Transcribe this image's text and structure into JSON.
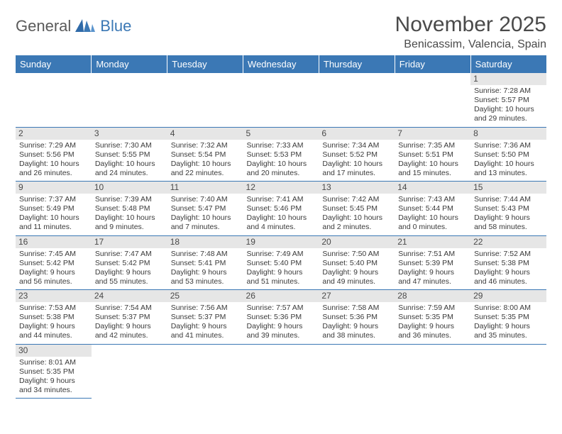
{
  "logo": {
    "text1": "General",
    "text2": "Blue"
  },
  "title": "November 2025",
  "location": "Benicassim, Valencia, Spain",
  "colors": {
    "header_bg": "#3b78b5",
    "header_text": "#ffffff",
    "daynum_bg": "#e6e6e6",
    "text": "#3a3a3a",
    "logo_gray": "#5a5a5a",
    "logo_blue": "#3b78b5",
    "border": "#3b78b5"
  },
  "weekdays": [
    "Sunday",
    "Monday",
    "Tuesday",
    "Wednesday",
    "Thursday",
    "Friday",
    "Saturday"
  ],
  "weeks": [
    [
      null,
      null,
      null,
      null,
      null,
      null,
      {
        "n": "1",
        "sunrise": "7:28 AM",
        "sunset": "5:57 PM",
        "daylight": "10 hours and 29 minutes."
      }
    ],
    [
      {
        "n": "2",
        "sunrise": "7:29 AM",
        "sunset": "5:56 PM",
        "daylight": "10 hours and 26 minutes."
      },
      {
        "n": "3",
        "sunrise": "7:30 AM",
        "sunset": "5:55 PM",
        "daylight": "10 hours and 24 minutes."
      },
      {
        "n": "4",
        "sunrise": "7:32 AM",
        "sunset": "5:54 PM",
        "daylight": "10 hours and 22 minutes."
      },
      {
        "n": "5",
        "sunrise": "7:33 AM",
        "sunset": "5:53 PM",
        "daylight": "10 hours and 20 minutes."
      },
      {
        "n": "6",
        "sunrise": "7:34 AM",
        "sunset": "5:52 PM",
        "daylight": "10 hours and 17 minutes."
      },
      {
        "n": "7",
        "sunrise": "7:35 AM",
        "sunset": "5:51 PM",
        "daylight": "10 hours and 15 minutes."
      },
      {
        "n": "8",
        "sunrise": "7:36 AM",
        "sunset": "5:50 PM",
        "daylight": "10 hours and 13 minutes."
      }
    ],
    [
      {
        "n": "9",
        "sunrise": "7:37 AM",
        "sunset": "5:49 PM",
        "daylight": "10 hours and 11 minutes."
      },
      {
        "n": "10",
        "sunrise": "7:39 AM",
        "sunset": "5:48 PM",
        "daylight": "10 hours and 9 minutes."
      },
      {
        "n": "11",
        "sunrise": "7:40 AM",
        "sunset": "5:47 PM",
        "daylight": "10 hours and 7 minutes."
      },
      {
        "n": "12",
        "sunrise": "7:41 AM",
        "sunset": "5:46 PM",
        "daylight": "10 hours and 4 minutes."
      },
      {
        "n": "13",
        "sunrise": "7:42 AM",
        "sunset": "5:45 PM",
        "daylight": "10 hours and 2 minutes."
      },
      {
        "n": "14",
        "sunrise": "7:43 AM",
        "sunset": "5:44 PM",
        "daylight": "10 hours and 0 minutes."
      },
      {
        "n": "15",
        "sunrise": "7:44 AM",
        "sunset": "5:43 PM",
        "daylight": "9 hours and 58 minutes."
      }
    ],
    [
      {
        "n": "16",
        "sunrise": "7:45 AM",
        "sunset": "5:42 PM",
        "daylight": "9 hours and 56 minutes."
      },
      {
        "n": "17",
        "sunrise": "7:47 AM",
        "sunset": "5:42 PM",
        "daylight": "9 hours and 55 minutes."
      },
      {
        "n": "18",
        "sunrise": "7:48 AM",
        "sunset": "5:41 PM",
        "daylight": "9 hours and 53 minutes."
      },
      {
        "n": "19",
        "sunrise": "7:49 AM",
        "sunset": "5:40 PM",
        "daylight": "9 hours and 51 minutes."
      },
      {
        "n": "20",
        "sunrise": "7:50 AM",
        "sunset": "5:40 PM",
        "daylight": "9 hours and 49 minutes."
      },
      {
        "n": "21",
        "sunrise": "7:51 AM",
        "sunset": "5:39 PM",
        "daylight": "9 hours and 47 minutes."
      },
      {
        "n": "22",
        "sunrise": "7:52 AM",
        "sunset": "5:38 PM",
        "daylight": "9 hours and 46 minutes."
      }
    ],
    [
      {
        "n": "23",
        "sunrise": "7:53 AM",
        "sunset": "5:38 PM",
        "daylight": "9 hours and 44 minutes."
      },
      {
        "n": "24",
        "sunrise": "7:54 AM",
        "sunset": "5:37 PM",
        "daylight": "9 hours and 42 minutes."
      },
      {
        "n": "25",
        "sunrise": "7:56 AM",
        "sunset": "5:37 PM",
        "daylight": "9 hours and 41 minutes."
      },
      {
        "n": "26",
        "sunrise": "7:57 AM",
        "sunset": "5:36 PM",
        "daylight": "9 hours and 39 minutes."
      },
      {
        "n": "27",
        "sunrise": "7:58 AM",
        "sunset": "5:36 PM",
        "daylight": "9 hours and 38 minutes."
      },
      {
        "n": "28",
        "sunrise": "7:59 AM",
        "sunset": "5:35 PM",
        "daylight": "9 hours and 36 minutes."
      },
      {
        "n": "29",
        "sunrise": "8:00 AM",
        "sunset": "5:35 PM",
        "daylight": "9 hours and 35 minutes."
      }
    ],
    [
      {
        "n": "30",
        "sunrise": "8:01 AM",
        "sunset": "5:35 PM",
        "daylight": "9 hours and 34 minutes."
      },
      null,
      null,
      null,
      null,
      null,
      null
    ]
  ],
  "labels": {
    "sunrise": "Sunrise:",
    "sunset": "Sunset:",
    "daylight": "Daylight:"
  }
}
